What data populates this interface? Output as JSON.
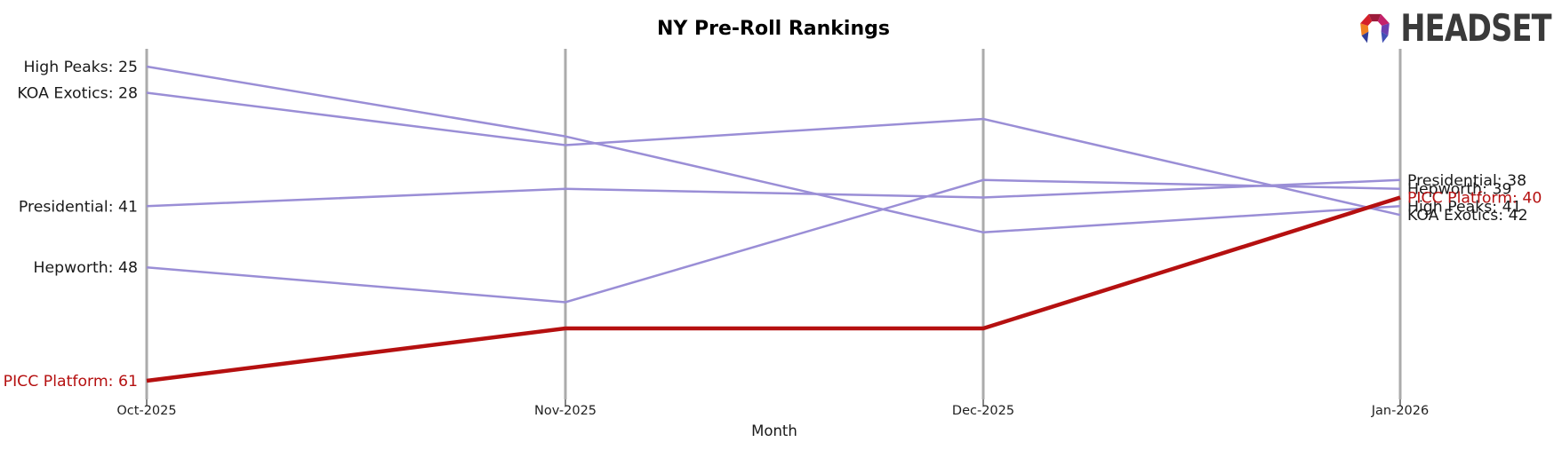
{
  "branding": {
    "logo_text": "HEADSET",
    "logo_text_color": "#3a3a3a",
    "logo_mark_colors": {
      "orange": "#f08021",
      "red": "#d42029",
      "maroon": "#9c1b3a",
      "magenta": "#c4216b",
      "purple": "#6a3fb0",
      "blue_foot_right": "#4150b5",
      "navy_foot_left": "#303d99"
    }
  },
  "colors": {
    "axis": "#ababab",
    "tick": "#444444",
    "text": "#1a1a1a",
    "line_default": "#9a8ed6",
    "line_highlight": "#b51010",
    "background": "#ffffff"
  },
  "chart_data": {
    "type": "line",
    "subtype": "bump-rank-chart",
    "title": "NY Pre-Roll Rankings",
    "xlabel": "Month",
    "ylabel": "",
    "categories": [
      "Oct-2025",
      "Nov-2025",
      "Dec-2025",
      "Jan-2026"
    ],
    "series": [
      {
        "name": "High Peaks",
        "values": [
          25,
          33,
          44,
          41
        ],
        "color": "#9a8ed6",
        "highlight": false
      },
      {
        "name": "KOA Exotics",
        "values": [
          28,
          34,
          31,
          42
        ],
        "color": "#9a8ed6",
        "highlight": false
      },
      {
        "name": "Presidential",
        "values": [
          41,
          39,
          40,
          38
        ],
        "color": "#9a8ed6",
        "highlight": false
      },
      {
        "name": "Hepworth",
        "values": [
          48,
          52,
          38,
          39
        ],
        "color": "#9a8ed6",
        "highlight": false
      },
      {
        "name": "PICC Platform",
        "values": [
          61,
          55,
          55,
          40
        ],
        "color": "#b51010",
        "highlight": true
      }
    ],
    "start_labels": [
      "High Peaks: 25",
      "KOA Exotics: 28",
      "Presidential: 41",
      "Hepworth: 48",
      "PICC Platform: 61"
    ],
    "end_labels": [
      "Presidential: 38",
      "Hepworth: 39",
      "PICC Platform: 40",
      "High Peaks: 41",
      "KOA Exotics: 42"
    ],
    "value_axis": {
      "orientation": "inverted-rank",
      "best_visible": 25,
      "worst_visible": 61
    },
    "grid": false,
    "legend": "none"
  }
}
